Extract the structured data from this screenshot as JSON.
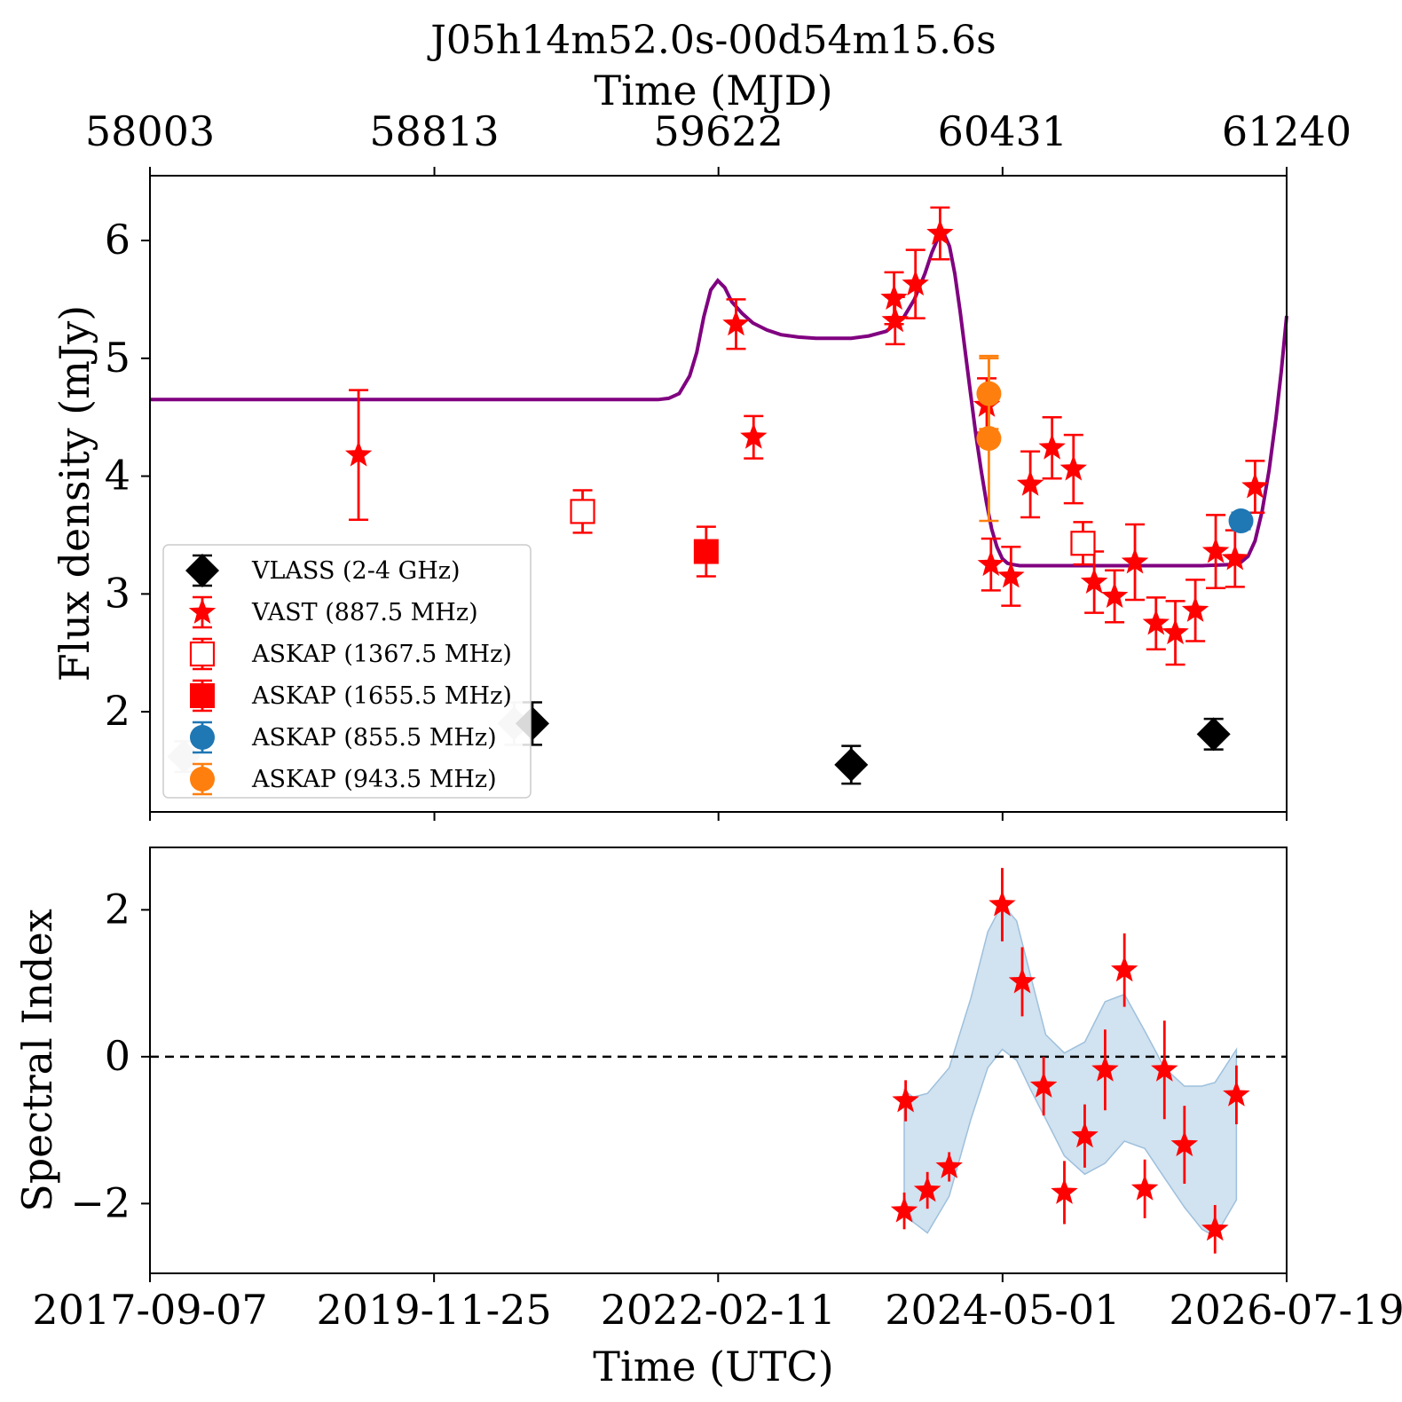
{
  "colors": {
    "vlass": "#000000",
    "vlass_faded": "#c8c8c8",
    "red": "#ff0000",
    "blue": "#1f77b4",
    "orange": "#ff7f0e",
    "model": "#800080",
    "band": "#b8d3e8"
  },
  "chart_data": [
    {
      "panel": "flux",
      "type": "scatter",
      "title": "J05h14m52.0s-00d54m15.6s",
      "top_xlabel": "Time (MJD)",
      "top_xticks": [
        "58003",
        "58813",
        "59622",
        "60431",
        "61240"
      ],
      "top_xtick_values": [
        58003,
        58813,
        59622,
        60431,
        61240
      ],
      "ylabel": "Flux density (mJy)",
      "ylim": [
        1.15,
        6.55
      ],
      "xlim_mjd": [
        58003,
        61240
      ],
      "yticks": [
        "2",
        "3",
        "4",
        "5",
        "6"
      ],
      "ytick_values": [
        2,
        3,
        4,
        5,
        6
      ],
      "legend": {
        "placement": "lower-left",
        "entries": [
          {
            "key": "vlass",
            "label": "VLASS (2-4 GHz)"
          },
          {
            "key": "vast",
            "label": "VAST (887.5 MHz)"
          },
          {
            "key": "askap1367",
            "label": "ASKAP (1367.5 MHz)"
          },
          {
            "key": "askap1655",
            "label": "ASKAP (1655.5 MHz)"
          },
          {
            "key": "askap855",
            "label": "ASKAP (855.5 MHz)"
          },
          {
            "key": "askap943",
            "label": "ASKAP (943.5 MHz)"
          }
        ]
      },
      "series": [
        {
          "key": "vlass_faded",
          "marker": "diamond",
          "points": [
            {
              "x": 58100,
              "y": 1.62,
              "err": 0.13
            },
            {
              "x": 59040,
              "y": 1.9,
              "err": 0.18
            }
          ]
        },
        {
          "key": "vlass",
          "marker": "diamond",
          "points": [
            {
              "x": 59092,
              "y": 1.9,
              "err": 0.18
            },
            {
              "x": 60000,
              "y": 1.55,
              "err": 0.16
            },
            {
              "x": 61032,
              "y": 1.81,
              "err": 0.13
            }
          ]
        },
        {
          "key": "vast",
          "marker": "star",
          "points": [
            {
              "x": 58597,
              "y": 4.18,
              "err": 0.55
            },
            {
              "x": 59672,
              "y": 5.29,
              "err": 0.21
            },
            {
              "x": 59722,
              "y": 4.33,
              "err": 0.18
            },
            {
              "x": 60122,
              "y": 5.51,
              "err": 0.22
            },
            {
              "x": 60125,
              "y": 5.32,
              "err": 0.2
            },
            {
              "x": 60183,
              "y": 5.63,
              "err": 0.29
            },
            {
              "x": 60253,
              "y": 6.06,
              "err": 0.22
            },
            {
              "x": 60386,
              "y": 4.6,
              "err": 0.23
            },
            {
              "x": 60398,
              "y": 3.25,
              "err": 0.22
            },
            {
              "x": 60455,
              "y": 3.15,
              "err": 0.25
            },
            {
              "x": 60510,
              "y": 3.93,
              "err": 0.28
            },
            {
              "x": 60572,
              "y": 4.24,
              "err": 0.26
            },
            {
              "x": 60633,
              "y": 4.06,
              "err": 0.29
            },
            {
              "x": 60692,
              "y": 3.1,
              "err": 0.26
            },
            {
              "x": 60750,
              "y": 2.98,
              "err": 0.22
            },
            {
              "x": 60808,
              "y": 3.27,
              "err": 0.32
            },
            {
              "x": 60868,
              "y": 2.75,
              "err": 0.22
            },
            {
              "x": 60923,
              "y": 2.67,
              "err": 0.27
            },
            {
              "x": 60980,
              "y": 2.86,
              "err": 0.26
            },
            {
              "x": 61038,
              "y": 3.36,
              "err": 0.31
            },
            {
              "x": 61093,
              "y": 3.3,
              "err": 0.24
            },
            {
              "x": 61150,
              "y": 3.91,
              "err": 0.22
            }
          ]
        },
        {
          "key": "askap1367",
          "marker": "open-square",
          "points": [
            {
              "x": 59235,
              "y": 3.7,
              "err": 0.18
            },
            {
              "x": 60660,
              "y": 3.43,
              "err": 0.18
            }
          ]
        },
        {
          "key": "askap1655",
          "marker": "square",
          "points": [
            {
              "x": 59587,
              "y": 3.36,
              "err": 0.21
            }
          ]
        },
        {
          "key": "askap855",
          "marker": "circle",
          "points": [
            {
              "x": 61110,
              "y": 3.62,
              "err": 0.07
            }
          ]
        },
        {
          "key": "askap943",
          "marker": "circle",
          "points": [
            {
              "x": 60392,
              "y": 4.7,
              "err": 0.3
            },
            {
              "x": 60392,
              "y": 4.32,
              "err": 0.7
            }
          ]
        }
      ],
      "model_curve": {
        "key": "model",
        "x": [
          58003,
          58800,
          59400,
          59450,
          59480,
          59510,
          59540,
          59560,
          59580,
          59600,
          59620,
          59640,
          59660,
          59690,
          59720,
          59760,
          59800,
          59850,
          59900,
          59950,
          60000,
          60050,
          60100,
          60150,
          60180,
          60210,
          60230,
          60250,
          60265,
          60280,
          60295,
          60310,
          60325,
          60340,
          60355,
          60370,
          60385,
          60400,
          60415,
          60430,
          60445,
          60460,
          60480,
          60520,
          60600,
          60800,
          61000,
          61080,
          61110,
          61130,
          61150,
          61170,
          61190,
          61210,
          61225,
          61240
        ],
        "y": [
          4.65,
          4.65,
          4.65,
          4.65,
          4.66,
          4.7,
          4.85,
          5.05,
          5.35,
          5.58,
          5.66,
          5.6,
          5.48,
          5.38,
          5.3,
          5.24,
          5.2,
          5.18,
          5.17,
          5.17,
          5.17,
          5.19,
          5.23,
          5.35,
          5.5,
          5.72,
          5.9,
          6.04,
          6.05,
          5.95,
          5.72,
          5.4,
          5.05,
          4.7,
          4.35,
          4.05,
          3.78,
          3.55,
          3.4,
          3.3,
          3.26,
          3.25,
          3.24,
          3.24,
          3.24,
          3.24,
          3.24,
          3.25,
          3.27,
          3.32,
          3.45,
          3.7,
          4.05,
          4.5,
          4.9,
          5.36
        ]
      }
    },
    {
      "panel": "spectral",
      "type": "scatter",
      "xlabel": "Time (UTC)",
      "xticks": [
        "2017-09-07",
        "2019-11-25",
        "2022-02-11",
        "2024-05-01",
        "2026-07-19"
      ],
      "xtick_values": [
        "2017-09-07",
        "2019-11-25",
        "2022-02-11",
        "2024-05-01",
        "2026-07-19"
      ],
      "ylabel": "Spectral Index",
      "ylim": [
        -2.95,
        2.85
      ],
      "yticks": [
        "−2",
        "0",
        "2"
      ],
      "ytick_values": [
        -2,
        0,
        2
      ],
      "reference_line": 0,
      "series": [
        {
          "key": "vast",
          "marker": "star",
          "points": [
            {
              "x": "2023-07-26",
              "y": -2.1,
              "err": 0.25
            },
            {
              "x": "2023-07-30",
              "y": -0.6,
              "err": 0.28
            },
            {
              "x": "2023-09-30",
              "y": -1.82,
              "err": 0.25
            },
            {
              "x": "2023-12-01",
              "y": -1.5,
              "err": 0.2
            },
            {
              "x": "2024-04-30",
              "y": 2.07,
              "err": 0.5
            },
            {
              "x": "2024-06-26",
              "y": 1.02,
              "err": 0.47
            },
            {
              "x": "2024-08-26",
              "y": -0.4,
              "err": 0.4
            },
            {
              "x": "2024-10-24",
              "y": -1.85,
              "err": 0.43
            },
            {
              "x": "2024-12-21",
              "y": -1.08,
              "err": 0.43
            },
            {
              "x": "2025-02-17",
              "y": -0.18,
              "err": 0.55
            },
            {
              "x": "2025-04-13",
              "y": 1.18,
              "err": 0.5
            },
            {
              "x": "2025-06-10",
              "y": -1.8,
              "err": 0.4
            },
            {
              "x": "2025-08-05",
              "y": -0.18,
              "err": 0.67
            },
            {
              "x": "2025-10-01",
              "y": -1.2,
              "err": 0.53
            },
            {
              "x": "2025-12-27",
              "y": -2.35,
              "err": 0.33
            },
            {
              "x": "2026-02-26",
              "y": -0.52,
              "err": 0.4
            }
          ]
        }
      ],
      "band": {
        "key": "band",
        "x": [
          "2023-07-26",
          "2023-08-20",
          "2023-09-30",
          "2023-12-01",
          "2024-02-01",
          "2024-03-20",
          "2024-04-30",
          "2024-06-10",
          "2024-07-20",
          "2024-09-01",
          "2024-10-24",
          "2024-12-21",
          "2025-02-17",
          "2025-04-13",
          "2025-06-10",
          "2025-08-05",
          "2025-10-01",
          "2025-11-20",
          "2025-12-27",
          "2026-02-26"
        ],
        "upper": [
          -0.45,
          -0.55,
          -0.5,
          -0.15,
          0.8,
          1.7,
          2.08,
          1.85,
          1.1,
          0.3,
          0.05,
          0.2,
          0.75,
          0.85,
          0.35,
          -0.15,
          -0.4,
          -0.4,
          -0.35,
          0.1
        ],
        "lower": [
          -1.9,
          -2.25,
          -2.4,
          -1.9,
          -0.85,
          -0.15,
          0.1,
          -0.05,
          -0.45,
          -0.85,
          -1.35,
          -1.6,
          -1.45,
          -1.15,
          -1.25,
          -1.65,
          -2.05,
          -2.35,
          -2.45,
          -1.95
        ]
      }
    }
  ]
}
